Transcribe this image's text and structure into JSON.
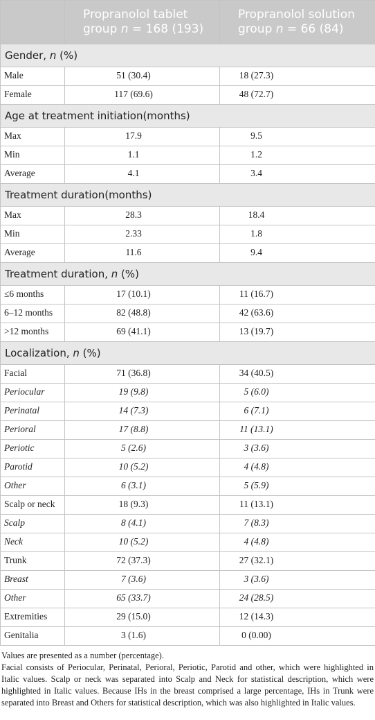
{
  "table": {
    "header": [
      {
        "pre": "Propranolol tablet group ",
        "italic": "n",
        "post": " = 168 (193)"
      },
      {
        "pre": "Propranolol solution group ",
        "italic": "n",
        "post": " = 66 (84)"
      }
    ],
    "sections": [
      {
        "title": {
          "pre": "Gender, ",
          "italic": "n",
          "post": " (%)"
        },
        "rows": [
          {
            "label": "Male",
            "values": [
              "51 (30.4)",
              "18 (27.3)"
            ]
          },
          {
            "label": "Female",
            "values": [
              "117 (69.6)",
              "48 (72.7)"
            ]
          }
        ]
      },
      {
        "title": {
          "pre": "Age at treatment initiation(months)"
        },
        "rows": [
          {
            "label": "Max",
            "values": [
              "17.9",
              "9.5"
            ]
          },
          {
            "label": "Min",
            "values": [
              "1.1",
              "1.2"
            ]
          },
          {
            "label": "Average",
            "values": [
              "4.1",
              "3.4"
            ]
          }
        ]
      },
      {
        "title": {
          "pre": "Treatment duration(months)"
        },
        "rows": [
          {
            "label": "Max",
            "values": [
              "28.3",
              "18.4"
            ]
          },
          {
            "label": "Min",
            "values": [
              "2.33",
              "1.8"
            ]
          },
          {
            "label": "Average",
            "values": [
              "11.6",
              "9.4"
            ]
          }
        ]
      },
      {
        "title": {
          "pre": "Treatment duration, ",
          "italic": "n",
          "post": " (%)"
        },
        "rows": [
          {
            "label": "≤6 months",
            "values": [
              "17 (10.1)",
              "11 (16.7)"
            ]
          },
          {
            "label": "6–12 months",
            "values": [
              "82 (48.8)",
              "42 (63.6)"
            ]
          },
          {
            "label": ">12 months",
            "values": [
              "69 (41.1)",
              "13 (19.7)"
            ]
          }
        ]
      },
      {
        "title": {
          "pre": "Localization, ",
          "italic": "n",
          "post": " (%)"
        },
        "rows": [
          {
            "label": "Facial",
            "values": [
              "71 (36.8)",
              "34 (40.5)"
            ]
          },
          {
            "label": "Periocular",
            "values": [
              "19 (9.8)",
              "5 (6.0)"
            ],
            "italic": true
          },
          {
            "label": "Perinatal",
            "values": [
              "14 (7.3)",
              "6 (7.1)"
            ],
            "italic": true
          },
          {
            "label": "Perioral",
            "values": [
              "17 (8.8)",
              "11 (13.1)"
            ],
            "italic": true
          },
          {
            "label": "Periotic",
            "values": [
              "5 (2.6)",
              "3 (3.6)"
            ],
            "italic": true
          },
          {
            "label": "Parotid",
            "values": [
              "10 (5.2)",
              "4 (4.8)"
            ],
            "italic": true
          },
          {
            "label": "Other",
            "values": [
              "6 (3.1)",
              "5 (5.9)"
            ],
            "italic": true
          },
          {
            "label": "Scalp or neck",
            "values": [
              "18 (9.3)",
              "11 (13.1)"
            ]
          },
          {
            "label": "Scalp",
            "values": [
              "8 (4.1)",
              "7 (8.3)"
            ],
            "italic": true
          },
          {
            "label": "Neck",
            "values": [
              "10 (5.2)",
              "4 (4.8)"
            ],
            "italic": true
          },
          {
            "label": "Trunk",
            "values": [
              "72 (37.3)",
              "27 (32.1)"
            ]
          },
          {
            "label": "Breast",
            "values": [
              "7 (3.6)",
              "3 (3.6)"
            ],
            "italic": true
          },
          {
            "label": "Other",
            "values": [
              "65 (33.7)",
              "24 (28.5)"
            ],
            "italic": true
          },
          {
            "label": "Extremities",
            "values": [
              "29 (15.0)",
              "12 (14.3)"
            ]
          },
          {
            "label": "Genitalia",
            "values": [
              "3 (1.6)",
              "0 (0.00)"
            ]
          }
        ]
      }
    ],
    "notes": [
      "Values are presented as a number (percentage).",
      "Facial consists of Periocular, Perinatal, Perioral, Periotic, Parotid and other, which were highlighted in Italic values. Scalp or neck was separated into Scalp and Neck for statistical description, which were highlighted in Italic values. Because IHs in the breast comprised a large percentage, IHs in Trunk were separated into Breast and Others for statistical description, which was also highlighted in Italic values."
    ]
  }
}
